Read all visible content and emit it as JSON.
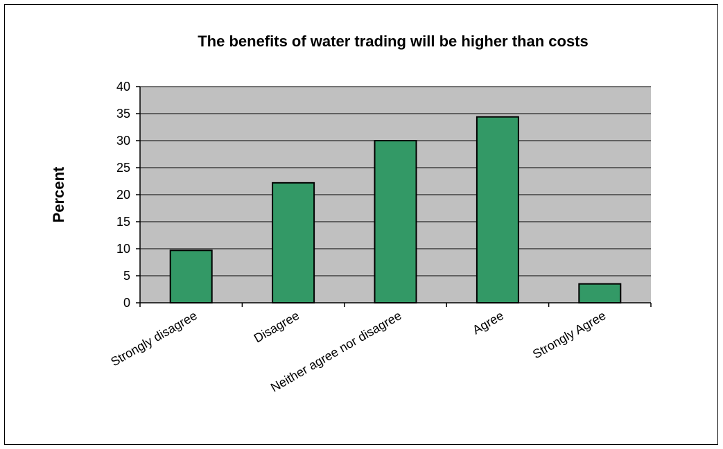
{
  "chart_data": {
    "type": "bar",
    "title": "The benefits of water trading will be higher than costs",
    "xlabel": "",
    "ylabel": "Percent",
    "categories": [
      "Strongly disagree",
      "Disagree",
      "Neither agree nor disagree",
      "Agree",
      "Strongly Agree"
    ],
    "values": [
      9.7,
      22.2,
      30.0,
      34.4,
      3.5
    ],
    "ylim": [
      0,
      40
    ],
    "yticks": [
      0,
      5,
      10,
      15,
      20,
      25,
      30,
      35,
      40
    ],
    "grid": true,
    "legend": "none",
    "colors": {
      "bar_fill": "#339966",
      "bar_stroke": "#000000",
      "plot_background": "#c0c0c0",
      "gridline": "#000000"
    }
  }
}
